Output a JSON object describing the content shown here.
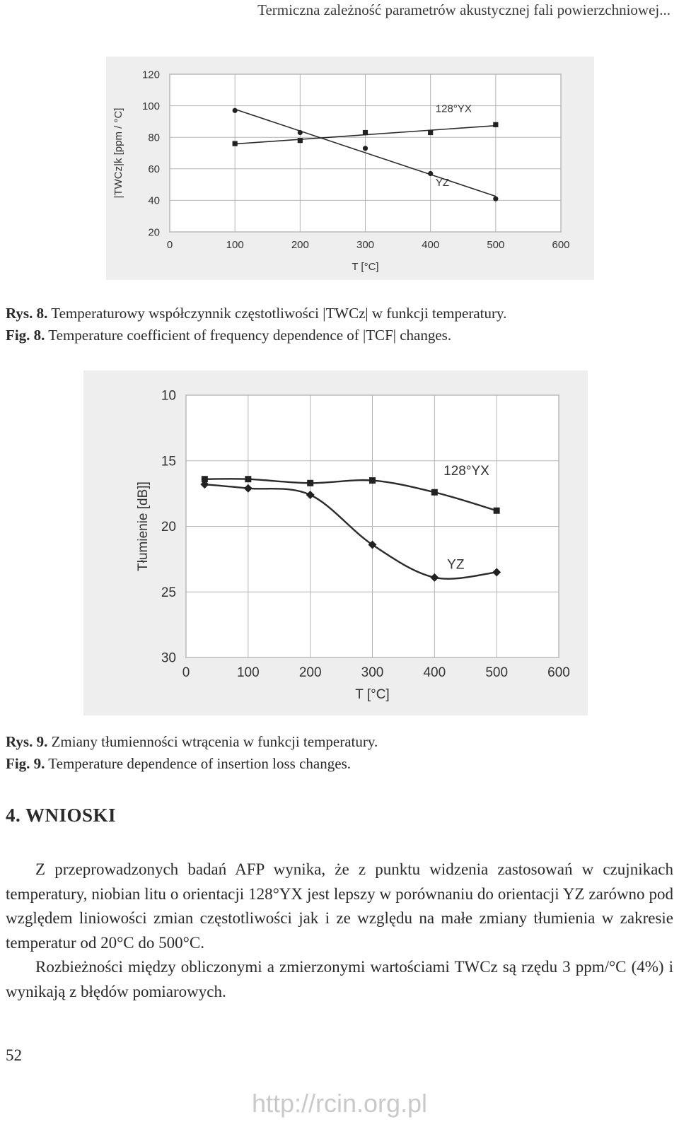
{
  "header": {
    "running_title": "Termiczna zależność parametrów akustycznej fali powierzchniowej..."
  },
  "figure8": {
    "caption_pl_label": "Rys. 8.",
    "caption_pl_text": " Temperaturowy współczynnik częstotliwości |TWCz| w funkcji temperatury.",
    "caption_en_label": "Fig. 8.",
    "caption_en_text": " Temperature coefficient of frequency dependence of |TCF| changes."
  },
  "figure9": {
    "caption_pl_label": "Rys. 9.",
    "caption_pl_text": " Zmiany tłumienności wtrącenia w funkcji temperatury.",
    "caption_en_label": "Fig. 9.",
    "caption_en_text": " Temperature dependence of insertion loss changes."
  },
  "section": {
    "title": "4. WNIOSKI"
  },
  "body": {
    "paragraph1": "Z przeprowadzonych badań AFP wynika, że z punktu widzenia zastosowań w czujnikach temperatury, niobian litu o orientacji 128°YX jest lepszy w porównaniu do orientacji YZ zarówno pod względem liniowości zmian częstotliwości jak i ze względu na małe zmiany tłumienia w zakresie temperatur od 20°C do 500°C.",
    "paragraph2": "Rozbieżności między obliczonymi a zmierzonymi wartościami TWCz są rzędu 3 ppm/°C (4%) i wynikają z błędów pomiarowych."
  },
  "footer": {
    "page_number": "52",
    "watermark": "http://rcin.org.pl"
  },
  "chart_data": [
    {
      "type": "line",
      "title": "",
      "xlabel": "T [°C]",
      "ylabel": "|TWCz|k [ppm / °C]",
      "xlim": [
        0,
        600
      ],
      "ylim": [
        20,
        120
      ],
      "xticks": [
        0,
        100,
        200,
        300,
        400,
        500,
        600
      ],
      "yticks": [
        20,
        40,
        60,
        80,
        100,
        120
      ],
      "grid": true,
      "reversed_y": false,
      "series": [
        {
          "name": "128°YX",
          "marker": "square",
          "fit": "linear",
          "x": [
            100,
            200,
            300,
            400,
            500
          ],
          "y": [
            76,
            78,
            83,
            83,
            88
          ]
        },
        {
          "name": "YZ",
          "marker": "circle",
          "fit": "linear",
          "x": [
            100,
            200,
            300,
            400,
            500
          ],
          "y": [
            97,
            83,
            73,
            57,
            41
          ]
        }
      ]
    },
    {
      "type": "line",
      "title": "",
      "xlabel": "T [°C]",
      "ylabel": "Tłumienie [dB]]",
      "xlim": [
        0,
        600
      ],
      "ylim": [
        10,
        30
      ],
      "xticks": [
        0,
        100,
        200,
        300,
        400,
        500,
        600
      ],
      "yticks": [
        10,
        15,
        20,
        25,
        30
      ],
      "grid": true,
      "reversed_y": true,
      "series": [
        {
          "name": "128°YX",
          "marker": "square",
          "fit": "smooth",
          "x": [
            30,
            100,
            200,
            300,
            400,
            500
          ],
          "y": [
            16.4,
            16.4,
            16.7,
            16.5,
            17.4,
            18.8
          ]
        },
        {
          "name": "YZ",
          "marker": "diamond",
          "fit": "smooth",
          "x": [
            30,
            100,
            200,
            300,
            400,
            500
          ],
          "y": [
            16.8,
            17.1,
            17.6,
            21.4,
            23.9,
            23.5
          ]
        }
      ]
    }
  ]
}
